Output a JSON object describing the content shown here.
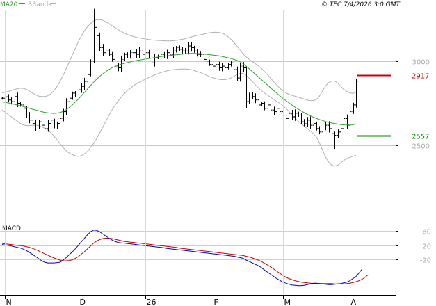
{
  "chart_data": [
    {
      "type": "ohlc",
      "panel": "price",
      "legend": {
        "ma_label": "MA20",
        "bands_label": "BBands",
        "ma_color": "#2ca02c",
        "bands_color": "#b0b0b0"
      },
      "header": "© TEC 7/4/2026 3:0 GMT",
      "yaxis": {
        "ticks": [
          3000,
          2500
        ],
        "tick_labels": [
          "3000",
          "2500"
        ],
        "ylim": [
          2060,
          3300
        ]
      },
      "xaxis": {
        "ticks": [
          "N",
          "D",
          "26",
          "F",
          "M",
          "A"
        ]
      },
      "levels": [
        {
          "label": "2917",
          "value": 2917,
          "color": "#cc0000"
        },
        {
          "label": "2557",
          "value": 2557,
          "color": "#008800"
        }
      ],
      "bar_color": "#000000",
      "close": [
        2780,
        2790,
        2770,
        2760,
        2790,
        2750,
        2740,
        2720,
        2680,
        2650,
        2630,
        2610,
        2640,
        2620,
        2600,
        2630,
        2650,
        2610,
        2630,
        2660,
        2700,
        2760,
        2780,
        2810,
        2800,
        2830,
        2850,
        2880,
        2920,
        3000,
        3200,
        3150,
        3080,
        3050,
        3060,
        3040,
        3010,
        2970,
        2960,
        3010,
        3040,
        3030,
        3050,
        3050,
        3040,
        3060,
        3040,
        3050,
        3030,
        2990,
        3020,
        3030,
        3040,
        3030,
        3050,
        3040,
        3060,
        3080,
        3070,
        3060,
        3060,
        3090,
        3080,
        3060,
        3040,
        3040,
        3010,
        3000,
        2980,
        2970,
        2980,
        2960,
        2970,
        2960,
        2980,
        2990,
        2950,
        2900,
        2970,
        2960,
        2760,
        2800,
        2790,
        2770,
        2740,
        2750,
        2720,
        2740,
        2710,
        2700,
        2720,
        2700,
        2680,
        2660,
        2690,
        2670,
        2690,
        2680,
        2640,
        2630,
        2650,
        2620,
        2630,
        2600,
        2580,
        2610,
        2620,
        2600,
        2570,
        2560,
        2580,
        2600,
        2660,
        2620,
        2700,
        2740,
        2880
      ],
      "ma20": [
        2760,
        2756,
        2752,
        2748,
        2744,
        2740,
        2735,
        2730,
        2725,
        2720,
        2715,
        2710,
        2705,
        2700,
        2696,
        2693,
        2691,
        2690,
        2692,
        2695,
        2702,
        2712,
        2725,
        2740,
        2757,
        2775,
        2795,
        2815,
        2835,
        2855,
        2875,
        2893,
        2910,
        2925,
        2938,
        2950,
        2960,
        2968,
        2975,
        2981,
        2986,
        2991,
        2995,
        3000,
        3003,
        3006,
        3009,
        3012,
        3015,
        3018,
        3021,
        3024,
        3027,
        3029,
        3031,
        3033,
        3035,
        3037,
        3039,
        3041,
        3043,
        3045,
        3046,
        3046,
        3045,
        3044,
        3042,
        3040,
        3038,
        3036,
        3034,
        3031,
        3028,
        3024,
        3020,
        3015,
        3010,
        3004,
        2996,
        2985,
        2970,
        2954,
        2938,
        2922,
        2906,
        2890,
        2874,
        2858,
        2842,
        2826,
        2810,
        2795,
        2780,
        2766,
        2752,
        2739,
        2727,
        2716,
        2705,
        2695,
        2685,
        2676,
        2668,
        2661,
        2654,
        2648,
        2642,
        2637,
        2633,
        2630,
        2627,
        2624,
        2622,
        2621,
        2621,
        2622,
        2628
      ],
      "bands_upper": [
        2810,
        2815,
        2820,
        2826,
        2832,
        2836,
        2840,
        2838,
        2832,
        2822,
        2810,
        2800,
        2792,
        2790,
        2790,
        2795,
        2806,
        2825,
        2850,
        2880,
        2915,
        2955,
        2995,
        3035,
        3075,
        3115,
        3150,
        3180,
        3205,
        3222,
        3238,
        3245,
        3246,
        3242,
        3233,
        3222,
        3210,
        3198,
        3187,
        3176,
        3166,
        3158,
        3151,
        3146,
        3141,
        3137,
        3134,
        3131,
        3128,
        3126,
        3124,
        3123,
        3122,
        3121,
        3120,
        3120,
        3121,
        3123,
        3126,
        3129,
        3133,
        3138,
        3143,
        3148,
        3152,
        3156,
        3160,
        3164,
        3168,
        3170,
        3171,
        3170,
        3166,
        3158,
        3146,
        3130,
        3110,
        3088,
        3065,
        3043,
        3025,
        3010,
        2997,
        2985,
        2972,
        2956,
        2938,
        2918,
        2898,
        2878,
        2858,
        2840,
        2824,
        2812,
        2803,
        2797,
        2792,
        2787,
        2781,
        2775,
        2769,
        2766,
        2766,
        2772,
        2792,
        2822,
        2852,
        2872,
        2882,
        2882,
        2870,
        2850,
        2832,
        2820,
        2812,
        2808,
        2815
      ],
      "bands_lower": [
        2710,
        2697,
        2684,
        2670,
        2656,
        2644,
        2630,
        2622,
        2618,
        2618,
        2620,
        2620,
        2618,
        2610,
        2602,
        2591,
        2576,
        2555,
        2534,
        2510,
        2489,
        2469,
        2455,
        2445,
        2439,
        2435,
        2440,
        2450,
        2465,
        2488,
        2512,
        2541,
        2574,
        2608,
        2643,
        2678,
        2710,
        2738,
        2763,
        2786,
        2806,
        2824,
        2839,
        2854,
        2865,
        2875,
        2884,
        2893,
        2902,
        2910,
        2918,
        2925,
        2932,
        2937,
        2942,
        2946,
        2949,
        2951,
        2952,
        2953,
        2953,
        2952,
        2949,
        2944,
        2938,
        2932,
        2924,
        2916,
        2908,
        2902,
        2897,
        2892,
        2890,
        2890,
        2894,
        2900,
        2910,
        2920,
        2927,
        2927,
        2915,
        2898,
        2879,
        2859,
        2840,
        2824,
        2810,
        2798,
        2786,
        2774,
        2762,
        2750,
        2736,
        2720,
        2701,
        2681,
        2662,
        2645,
        2629,
        2615,
        2601,
        2586,
        2570,
        2550,
        2516,
        2474,
        2432,
        2402,
        2384,
        2378,
        2384,
        2398,
        2412,
        2422,
        2430,
        2436,
        2441
      ]
    },
    {
      "type": "line",
      "panel": "macd",
      "title": "MACD",
      "yaxis": {
        "ticks": [
          60,
          20,
          -20
        ],
        "tick_labels": [
          "60",
          "20",
          "-20"
        ],
        "ylim": [
          -120,
          90
        ]
      },
      "series": [
        {
          "key": "macd",
          "color": "#0000cc",
          "values": [
            22,
            21,
            20,
            18,
            16,
            14,
            12,
            9,
            5,
            0,
            -6,
            -12,
            -18,
            -24,
            -28,
            -30,
            -30,
            -30,
            -29,
            -28,
            -22,
            -15,
            -7,
            1,
            10,
            20,
            30,
            40,
            50,
            58,
            63,
            62,
            58,
            52,
            46,
            40,
            35,
            31,
            28,
            27,
            26,
            25,
            24,
            23,
            22,
            21,
            20,
            19,
            18,
            17,
            16,
            15,
            14,
            13,
            11,
            10,
            9,
            8,
            7,
            6,
            5,
            4,
            3,
            2,
            1,
            0,
            -1,
            -2,
            -3,
            -4,
            -5,
            -6,
            -7,
            -8,
            -9,
            -10,
            -11,
            -13,
            -15,
            -17,
            -22,
            -26,
            -30,
            -34,
            -38,
            -43,
            -50,
            -56,
            -62,
            -68,
            -74,
            -79,
            -84,
            -87,
            -90,
            -92,
            -93,
            -94,
            -94,
            -93,
            -91,
            -89,
            -87,
            -87,
            -88,
            -89,
            -90,
            -91,
            -91,
            -90,
            -89,
            -88,
            -86,
            -84,
            -80,
            -74,
            -68,
            -58,
            -47
          ]
        },
        {
          "key": "signal",
          "color": "#cc0000",
          "values": [
            25,
            24,
            23,
            22,
            21,
            20,
            19,
            18,
            16,
            14,
            11,
            8,
            4,
            0,
            -4,
            -8,
            -12,
            -16,
            -19,
            -22,
            -24,
            -24,
            -23,
            -21,
            -17,
            -12,
            -5,
            2,
            10,
            18,
            26,
            32,
            36,
            39,
            40,
            40,
            39,
            37,
            35,
            33,
            31,
            30,
            29,
            28,
            27,
            26,
            25,
            24,
            23,
            22,
            21,
            20,
            19,
            18,
            17,
            16,
            15,
            14,
            12,
            11,
            10,
            9,
            8,
            7,
            6,
            5,
            4,
            3,
            2,
            1,
            0,
            -1,
            -2,
            -3,
            -4,
            -5,
            -6,
            -7,
            -8,
            -9,
            -11,
            -13,
            -16,
            -19,
            -22,
            -26,
            -31,
            -36,
            -41,
            -47,
            -53,
            -59,
            -65,
            -70,
            -74,
            -77,
            -80,
            -82,
            -84,
            -85,
            -86,
            -87,
            -88,
            -88,
            -88,
            -88,
            -88,
            -88,
            -88,
            -89,
            -89,
            -89,
            -89,
            -88,
            -87,
            -85,
            -83,
            -80,
            -76,
            -70,
            -63
          ]
        }
      ]
    }
  ]
}
